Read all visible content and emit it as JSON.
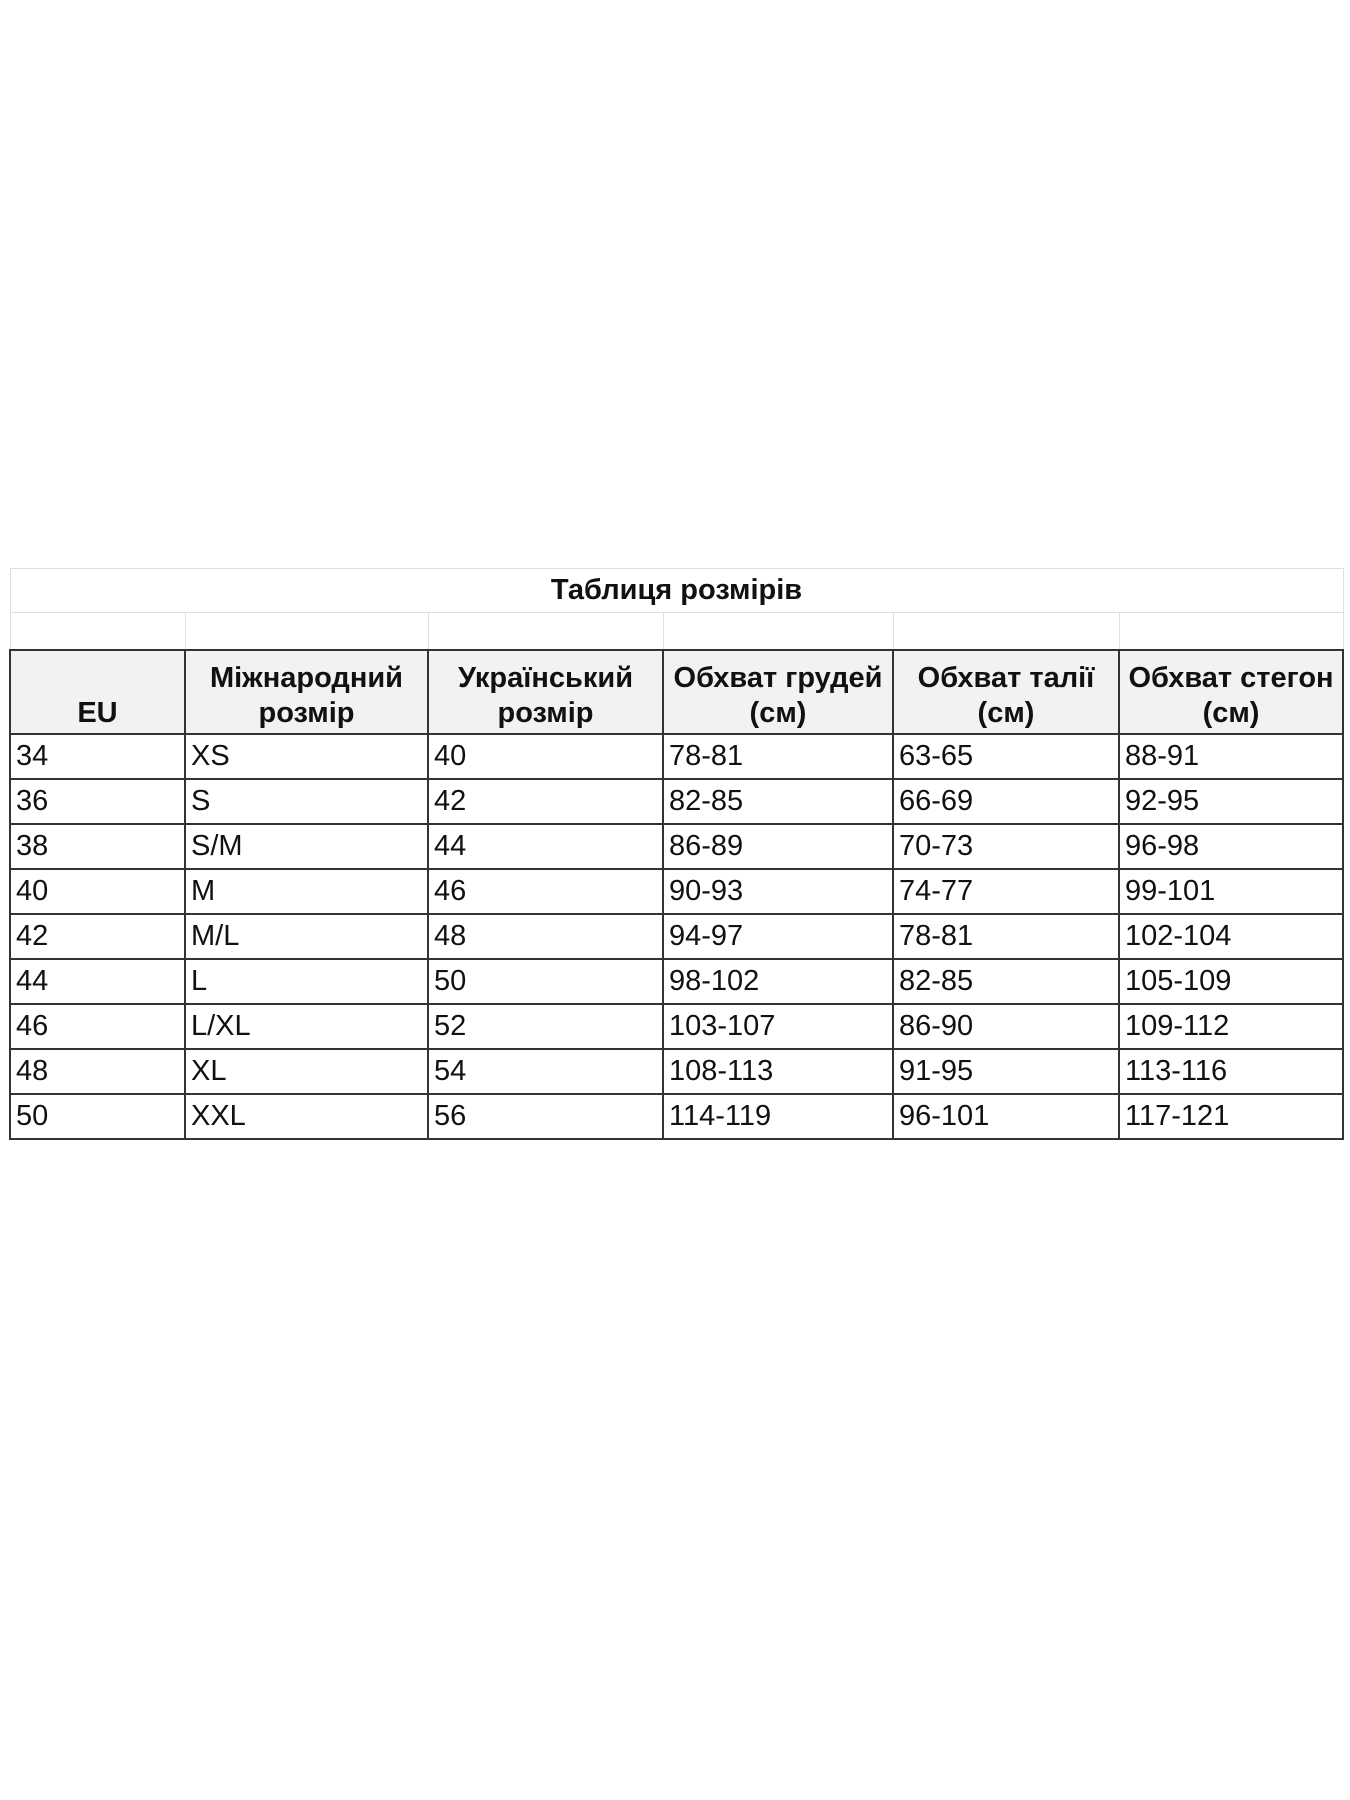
{
  "title": "Таблиця розмірів",
  "columns": [
    "EU",
    "Міжнародний розмір",
    "Український розмір",
    "Обхват грудей (см)",
    "Обхват талії (см)",
    "Обхват стегон (см)"
  ],
  "rows": [
    [
      "34",
      "XS",
      "40",
      "78-81",
      "63-65",
      "88-91"
    ],
    [
      "36",
      "S",
      "42",
      "82-85",
      "66-69",
      "92-95"
    ],
    [
      "38",
      "S/M",
      "44",
      "86-89",
      "70-73",
      "96-98"
    ],
    [
      "40",
      "M",
      "46",
      "90-93",
      "74-77",
      "99-101"
    ],
    [
      "42",
      "M/L",
      "48",
      "94-97",
      "78-81",
      "102-104"
    ],
    [
      "44",
      "L",
      "50",
      "98-102",
      "82-85",
      "105-109"
    ],
    [
      "46",
      "L/XL",
      "52",
      "103-107",
      "86-90",
      "109-112"
    ],
    [
      "48",
      "XL",
      "54",
      "108-113",
      "91-95",
      "113-116"
    ],
    [
      "50",
      "XXL",
      "56",
      "114-119",
      "96-101",
      "117-121"
    ]
  ]
}
